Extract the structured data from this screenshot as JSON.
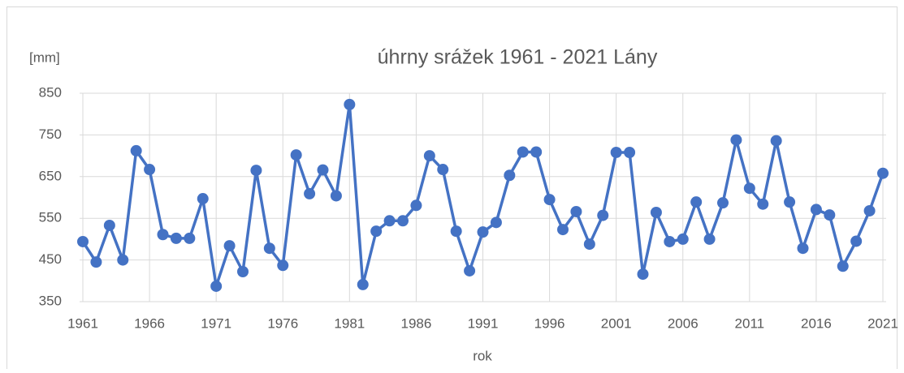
{
  "chart_data": {
    "type": "line",
    "title": "úhrny srážek 1961 - 2021 Lány",
    "y_label": "[mm]",
    "x_label": "rok",
    "x": [
      1961,
      1962,
      1963,
      1964,
      1965,
      1966,
      1967,
      1968,
      1969,
      1970,
      1971,
      1972,
      1973,
      1974,
      1975,
      1976,
      1977,
      1978,
      1979,
      1980,
      1981,
      1982,
      1983,
      1984,
      1985,
      1986,
      1987,
      1988,
      1989,
      1990,
      1991,
      1992,
      1993,
      1994,
      1995,
      1996,
      1997,
      1998,
      1999,
      2000,
      2001,
      2002,
      2003,
      2004,
      2005,
      2006,
      2007,
      2008,
      2009,
      2010,
      2011,
      2012,
      2013,
      2014,
      2015,
      2016,
      2017,
      2018,
      2019,
      2020,
      2021
    ],
    "series": [
      {
        "name": "úhrny srážek",
        "color": "#4472c4",
        "values": [
          494,
          445,
          533,
          450,
          712,
          667,
          511,
          502,
          502,
          597,
          387,
          484,
          422,
          665,
          478,
          437,
          702,
          609,
          666,
          604,
          823,
          391,
          519,
          544,
          544,
          581,
          700,
          667,
          519,
          424,
          517,
          540,
          653,
          709,
          709,
          595,
          523,
          566,
          488,
          557,
          708,
          708,
          416,
          564,
          494,
          500,
          589,
          500,
          587,
          738,
          622,
          584,
          736,
          589,
          478,
          571,
          558,
          435,
          495,
          568,
          658
        ]
      }
    ],
    "xlim": [
      1961,
      2021
    ],
    "xticks": [
      1961,
      1966,
      1971,
      1976,
      1981,
      1986,
      1991,
      1996,
      2001,
      2006,
      2011,
      2016,
      2021
    ],
    "ylim": [
      350,
      850
    ],
    "yticks": [
      350,
      450,
      550,
      650,
      750,
      850
    ],
    "grid": true
  }
}
